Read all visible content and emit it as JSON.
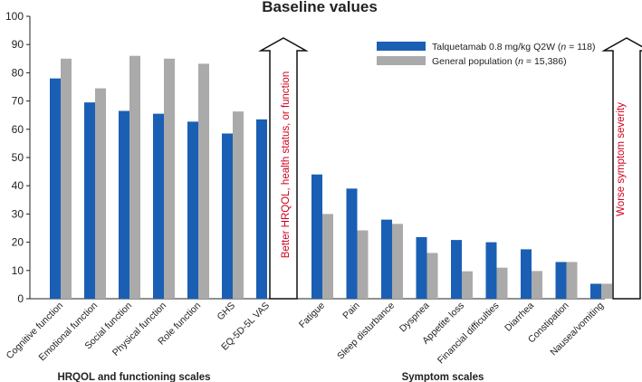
{
  "chart_data": {
    "type": "bar",
    "title": "Baseline values",
    "xlabel": "",
    "ylabel": "",
    "ylim": [
      0,
      100
    ],
    "yticks": [
      0,
      10,
      20,
      30,
      40,
      50,
      60,
      70,
      80,
      90,
      100
    ],
    "categories": [
      "Cognitive function",
      "Emotional function",
      "Social function",
      "Physical function",
      "Role function",
      "GHS",
      "EQ-5D-5L VAS",
      "Fatigue",
      "Pain",
      "Sleep disturbance",
      "Dyspnea",
      "Appetite loss",
      "Financial difficulties",
      "Diarrhea",
      "Constipation",
      "Nausea/vomiting"
    ],
    "series": [
      {
        "name": "Talquetamab 0.8 mg/kg Q2W (n = 118)",
        "label_prefix": "Talquetamab 0.8 mg/kg Q2W (",
        "label_n": "n",
        "label_suffix": " = 118)",
        "color": "#1a5fb4",
        "values": [
          78,
          69.5,
          66.5,
          65.5,
          62.7,
          58.5,
          63.5,
          44,
          39,
          28,
          21.8,
          20.8,
          20,
          17.5,
          13,
          5.3
        ]
      },
      {
        "name": "General population (n = 15,386)",
        "label_prefix": "General population (",
        "label_n": "n",
        "label_suffix": " = 15,386)",
        "color": "#aaaaaa",
        "values": [
          85,
          74.5,
          86,
          85,
          83.2,
          66.3,
          null,
          30,
          24.2,
          26.5,
          16.2,
          9.7,
          11,
          9.8,
          13,
          5.3
        ]
      }
    ],
    "groups": [
      {
        "label": "HRQOL and functioning scales"
      },
      {
        "label": "Symptom scales"
      }
    ],
    "annotations": {
      "better_arrow": "Better HRQOL, health status, or function",
      "worse_arrow": "Worse symptom severity"
    },
    "legend_position": "top-right",
    "grid": false
  }
}
